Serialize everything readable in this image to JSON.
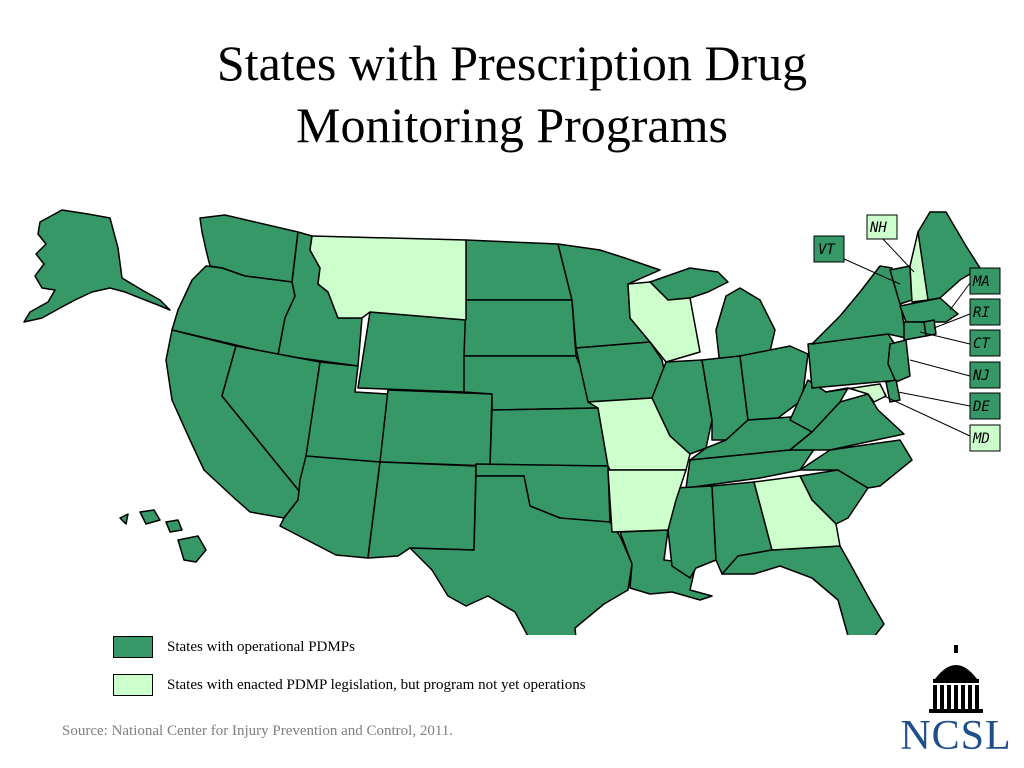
{
  "title": {
    "line1": "States with Prescription Drug",
    "line2": "Monitoring Programs"
  },
  "colors": {
    "operational": "#359866",
    "enacted": "#ccffcc",
    "stroke": "#000000",
    "source_text": "#808080",
    "logo": "#1f4f8b"
  },
  "legend": {
    "operational_label": "States with operational PDMPs",
    "enacted_label": "States with enacted PDMP legislation, but program not yet operations"
  },
  "state_tags": {
    "nh": "NH",
    "vt": "VT",
    "ma": "MA",
    "ri": "RI",
    "ct": "CT",
    "nj": "NJ",
    "de": "DE",
    "md": "MD"
  },
  "states_enacted_not_operational": [
    "MT",
    "WI",
    "MO",
    "AR",
    "GA",
    "NH",
    "MD"
  ],
  "source": "Source: National Center for Injury Prevention and Control, 2011.",
  "logo": {
    "text": "NCSL"
  }
}
